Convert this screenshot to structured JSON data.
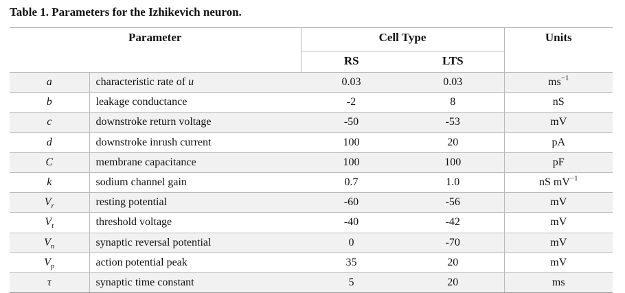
{
  "caption": "Table 1. Parameters for the Izhikevich neuron.",
  "headers": {
    "parameter": "Parameter",
    "cell_type": "Cell Type",
    "units": "Units",
    "rs": "RS",
    "lts": "LTS"
  },
  "rows": [
    {
      "sym": "a",
      "sym_sub": "",
      "desc": "characteristic rate of ",
      "desc_var": "u",
      "rs": "0.03",
      "lts": "0.03",
      "unit": "ms",
      "unit_sup": "−1"
    },
    {
      "sym": "b",
      "sym_sub": "",
      "desc": "leakage conductance",
      "desc_var": "",
      "rs": "-2",
      "lts": "8",
      "unit": "nS",
      "unit_sup": ""
    },
    {
      "sym": "c",
      "sym_sub": "",
      "desc": "downstroke return voltage",
      "desc_var": "",
      "rs": "-50",
      "lts": "-53",
      "unit": "mV",
      "unit_sup": ""
    },
    {
      "sym": "d",
      "sym_sub": "",
      "desc": "downstroke inrush current",
      "desc_var": "",
      "rs": "100",
      "lts": "20",
      "unit": "pA",
      "unit_sup": ""
    },
    {
      "sym": "C",
      "sym_sub": "",
      "desc": "membrane capacitance",
      "desc_var": "",
      "rs": "100",
      "lts": "100",
      "unit": "pF",
      "unit_sup": ""
    },
    {
      "sym": "k",
      "sym_sub": "",
      "desc": "sodium channel gain",
      "desc_var": "",
      "rs": "0.7",
      "lts": "1.0",
      "unit": "nS mV",
      "unit_sup": "−1"
    },
    {
      "sym": "V",
      "sym_sub": "r",
      "desc": "resting potential",
      "desc_var": "",
      "rs": "-60",
      "lts": "-56",
      "unit": "mV",
      "unit_sup": ""
    },
    {
      "sym": "V",
      "sym_sub": "t",
      "desc": "threshold voltage",
      "desc_var": "",
      "rs": "-40",
      "lts": "-42",
      "unit": "mV",
      "unit_sup": ""
    },
    {
      "sym": "V",
      "sym_sub": "n",
      "desc": "synaptic reversal potential",
      "desc_var": "",
      "rs": "0",
      "lts": "-70",
      "unit": "mV",
      "unit_sup": ""
    },
    {
      "sym": "V",
      "sym_sub": "p",
      "desc": "action potential peak",
      "desc_var": "",
      "rs": "35",
      "lts": "20",
      "unit": "mV",
      "unit_sup": ""
    },
    {
      "sym": "τ",
      "sym_sub": "",
      "desc": "synaptic time constant",
      "desc_var": "",
      "rs": "5",
      "lts": "20",
      "unit": "ms",
      "unit_sup": ""
    }
  ]
}
